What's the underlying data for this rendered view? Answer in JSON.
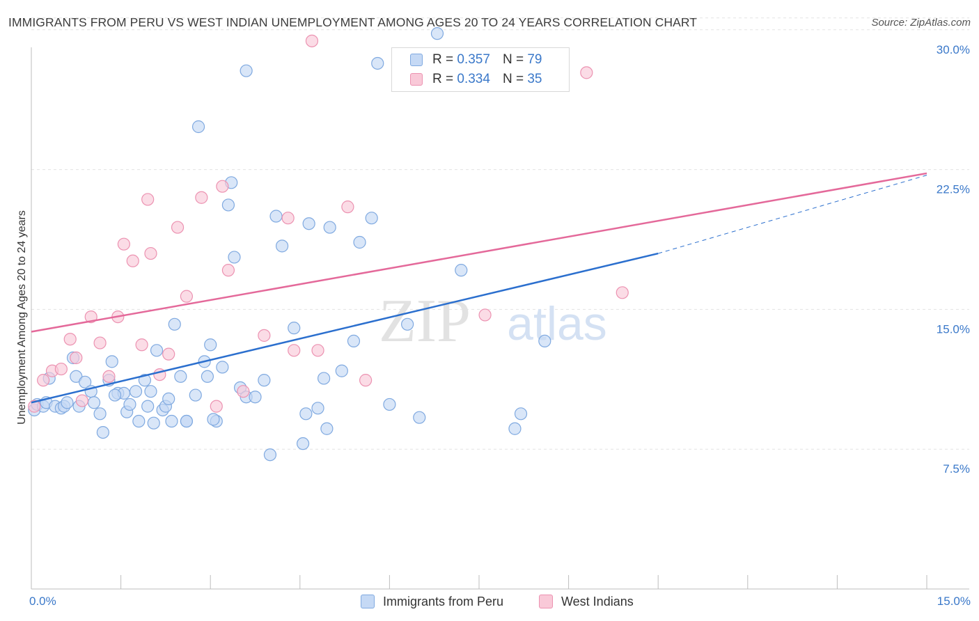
{
  "header": {
    "title": "IMMIGRANTS FROM PERU VS WEST INDIAN UNEMPLOYMENT AMONG AGES 20 TO 24 YEARS CORRELATION CHART",
    "source": "Source: ZipAtlas.com"
  },
  "legend": {
    "r_label": "R =",
    "n_label": "N =",
    "rows": [
      {
        "r": "0.357",
        "n": "79"
      },
      {
        "r": "0.334",
        "n": "35"
      }
    ]
  },
  "watermark": {
    "zip": "ZIP",
    "atlas": "atlas"
  },
  "colors": {
    "peru_fill": "#c5d9f5",
    "peru_stroke": "#7fa9e0",
    "peru_line": "#2b6fce",
    "wi_fill": "#f9c9d8",
    "wi_stroke": "#ec92b1",
    "wi_line": "#e4699a",
    "tick_text": "#3a78c9",
    "grid": "#e3e3e3"
  },
  "chart_data": {
    "type": "scatter",
    "title": "IMMIGRANTS FROM PERU VS WEST INDIAN UNEMPLOYMENT AMONG AGES 20 TO 24 YEARS CORRELATION CHART",
    "xlabel": "",
    "ylabel": "Unemployment Among Ages 20 to 24 years",
    "xlim": [
      0,
      15
    ],
    "ylim": [
      0,
      31
    ],
    "x_tick_labels": [
      "0.0%",
      "15.0%"
    ],
    "y_ticks": [
      7.5,
      15.0,
      22.5,
      30.0
    ],
    "y_tick_labels": [
      "7.5%",
      "15.0%",
      "22.5%",
      "30.0%"
    ],
    "grid": "horizontal dashed",
    "legend_position": "top-center",
    "series": [
      {
        "name": "Immigrants from Peru",
        "r": 0.357,
        "n": 79,
        "trend": {
          "x0": 0,
          "y0": 10.0,
          "x1": 10.5,
          "y1": 18.0,
          "dashed_to": {
            "x": 15,
            "y": 22.2
          }
        },
        "points": [
          [
            0.05,
            9.6
          ],
          [
            0.1,
            9.9
          ],
          [
            0.2,
            9.8
          ],
          [
            0.25,
            10.0
          ],
          [
            0.3,
            11.3
          ],
          [
            0.4,
            9.8
          ],
          [
            0.5,
            9.7
          ],
          [
            0.55,
            9.8
          ],
          [
            0.7,
            12.4
          ],
          [
            0.75,
            11.4
          ],
          [
            0.8,
            9.8
          ],
          [
            0.9,
            11.1
          ],
          [
            1.0,
            10.6
          ],
          [
            1.15,
            9.4
          ],
          [
            1.2,
            8.4
          ],
          [
            1.3,
            11.2
          ],
          [
            1.35,
            12.2
          ],
          [
            1.45,
            10.5
          ],
          [
            1.55,
            10.5
          ],
          [
            1.6,
            9.5
          ],
          [
            1.65,
            9.9
          ],
          [
            1.75,
            10.6
          ],
          [
            1.8,
            9.0
          ],
          [
            1.9,
            11.2
          ],
          [
            1.95,
            9.8
          ],
          [
            2.0,
            10.6
          ],
          [
            2.05,
            8.9
          ],
          [
            2.1,
            12.8
          ],
          [
            2.2,
            9.6
          ],
          [
            2.25,
            9.8
          ],
          [
            2.3,
            10.2
          ],
          [
            2.35,
            9.0
          ],
          [
            2.4,
            14.2
          ],
          [
            2.5,
            11.4
          ],
          [
            2.6,
            9.0
          ],
          [
            2.75,
            10.4
          ],
          [
            2.9,
            12.2
          ],
          [
            2.95,
            11.4
          ],
          [
            3.0,
            13.1
          ],
          [
            3.1,
            9.0
          ],
          [
            3.2,
            11.9
          ],
          [
            3.3,
            20.6
          ],
          [
            3.35,
            21.8
          ],
          [
            3.4,
            17.8
          ],
          [
            3.5,
            10.8
          ],
          [
            3.6,
            10.3
          ],
          [
            3.75,
            10.3
          ],
          [
            3.9,
            11.2
          ],
          [
            4.0,
            7.2
          ],
          [
            4.1,
            20.0
          ],
          [
            4.2,
            18.4
          ],
          [
            4.4,
            14.0
          ],
          [
            4.55,
            7.8
          ],
          [
            4.6,
            9.4
          ],
          [
            4.65,
            19.6
          ],
          [
            4.8,
            9.7
          ],
          [
            4.9,
            11.3
          ],
          [
            4.95,
            8.6
          ],
          [
            5.0,
            19.4
          ],
          [
            5.2,
            11.7
          ],
          [
            5.4,
            13.3
          ],
          [
            5.5,
            18.6
          ],
          [
            5.7,
            19.9
          ],
          [
            5.8,
            28.2
          ],
          [
            6.0,
            9.9
          ],
          [
            6.3,
            14.2
          ],
          [
            6.5,
            9.2
          ],
          [
            6.8,
            29.8
          ],
          [
            7.2,
            17.1
          ],
          [
            8.1,
            8.6
          ],
          [
            8.2,
            9.4
          ],
          [
            8.6,
            13.3
          ],
          [
            2.8,
            24.8
          ],
          [
            3.6,
            27.8
          ],
          [
            0.6,
            10.0
          ],
          [
            1.4,
            10.4
          ],
          [
            2.6,
            9.0
          ],
          [
            3.05,
            9.1
          ],
          [
            1.05,
            10.0
          ]
        ]
      },
      {
        "name": "West Indians",
        "r": 0.334,
        "n": 35,
        "trend": {
          "x0": 0,
          "y0": 13.8,
          "x1": 15,
          "y1": 22.3
        },
        "points": [
          [
            0.05,
            9.8
          ],
          [
            0.2,
            11.2
          ],
          [
            0.35,
            11.7
          ],
          [
            0.5,
            11.8
          ],
          [
            0.65,
            13.4
          ],
          [
            0.75,
            12.4
          ],
          [
            0.85,
            10.1
          ],
          [
            1.0,
            14.6
          ],
          [
            1.15,
            13.2
          ],
          [
            1.3,
            11.4
          ],
          [
            1.45,
            14.6
          ],
          [
            1.55,
            18.5
          ],
          [
            1.7,
            17.6
          ],
          [
            1.85,
            13.1
          ],
          [
            1.95,
            20.9
          ],
          [
            2.0,
            18.0
          ],
          [
            2.15,
            11.5
          ],
          [
            2.3,
            12.6
          ],
          [
            2.45,
            19.4
          ],
          [
            2.6,
            15.7
          ],
          [
            2.85,
            21.0
          ],
          [
            3.1,
            9.8
          ],
          [
            3.2,
            21.6
          ],
          [
            3.3,
            17.1
          ],
          [
            3.55,
            10.6
          ],
          [
            3.9,
            13.6
          ],
          [
            4.3,
            19.9
          ],
          [
            4.4,
            12.8
          ],
          [
            4.7,
            29.4
          ],
          [
            4.8,
            12.8
          ],
          [
            5.3,
            20.5
          ],
          [
            5.6,
            11.2
          ],
          [
            7.6,
            14.7
          ],
          [
            9.3,
            27.7
          ],
          [
            9.9,
            15.9
          ]
        ]
      }
    ]
  },
  "bottom_legend": [
    "Immigrants from Peru",
    "West Indians"
  ]
}
